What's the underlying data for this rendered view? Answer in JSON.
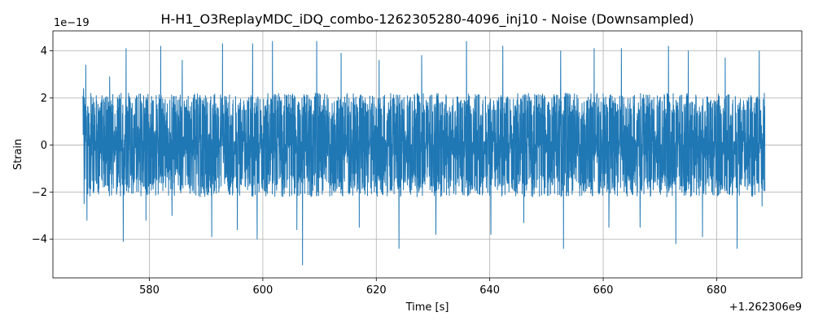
{
  "chart_data": {
    "type": "line",
    "title": "H-H1_O3ReplayMDC_iDQ_combo-1262305280-4096_inj10 - Noise (Downsampled)",
    "xlabel": "Time [s]",
    "ylabel": "Strain",
    "x_offset_label": "+1.262306e9",
    "y_scale_label": "1e−19",
    "xlim": [
      563,
      695
    ],
    "ylim": [
      -5.65,
      4.85
    ],
    "x_ticks": [
      580,
      600,
      620,
      640,
      660,
      680
    ],
    "x_tick_labels": [
      "580",
      "600",
      "620",
      "640",
      "660",
      "680"
    ],
    "y_ticks": [
      -4,
      -2,
      0,
      2,
      4
    ],
    "y_tick_labels": [
      "−4",
      "−2",
      "0",
      "2",
      "4"
    ],
    "grid": true,
    "series": [
      {
        "color": "#1f77b4",
        "x_range": [
          568.3,
          688.5
        ],
        "typical_band": [
          -1.9,
          2.1
        ],
        "extremes": [
          {
            "x": 568.4,
            "y": 2.4
          },
          {
            "x": 568.5,
            "y": -2.5
          },
          {
            "x": 568.8,
            "y": 3.4
          },
          {
            "x": 569.0,
            "y": -3.2
          },
          {
            "x": 573.0,
            "y": 2.9
          },
          {
            "x": 575.4,
            "y": -4.1
          },
          {
            "x": 575.9,
            "y": 4.1
          },
          {
            "x": 579.4,
            "y": -3.2
          },
          {
            "x": 582.0,
            "y": 4.2
          },
          {
            "x": 584.0,
            "y": -3.0
          },
          {
            "x": 585.8,
            "y": 3.6
          },
          {
            "x": 591.0,
            "y": -3.9
          },
          {
            "x": 592.9,
            "y": 4.3
          },
          {
            "x": 595.5,
            "y": -3.6
          },
          {
            "x": 598.2,
            "y": 4.3
          },
          {
            "x": 599.0,
            "y": -4.0
          },
          {
            "x": 601.7,
            "y": 4.4
          },
          {
            "x": 606.0,
            "y": -3.6
          },
          {
            "x": 607.0,
            "y": -5.1
          },
          {
            "x": 609.5,
            "y": 4.4
          },
          {
            "x": 613.8,
            "y": 3.9
          },
          {
            "x": 617.0,
            "y": -3.5
          },
          {
            "x": 620.5,
            "y": 3.6
          },
          {
            "x": 624.0,
            "y": -4.4
          },
          {
            "x": 628.0,
            "y": 3.8
          },
          {
            "x": 630.5,
            "y": -3.8
          },
          {
            "x": 635.9,
            "y": 4.4
          },
          {
            "x": 640.2,
            "y": -3.8
          },
          {
            "x": 642.3,
            "y": 4.2
          },
          {
            "x": 646.0,
            "y": -3.3
          },
          {
            "x": 652.5,
            "y": 4.0
          },
          {
            "x": 653.0,
            "y": -4.4
          },
          {
            "x": 658.4,
            "y": 4.1
          },
          {
            "x": 661.0,
            "y": -3.5
          },
          {
            "x": 663.2,
            "y": 4.1
          },
          {
            "x": 666.5,
            "y": -3.5
          },
          {
            "x": 671.5,
            "y": 4.2
          },
          {
            "x": 672.8,
            "y": -4.2
          },
          {
            "x": 675.0,
            "y": 4.0
          },
          {
            "x": 677.5,
            "y": -3.9
          },
          {
            "x": 681.5,
            "y": 3.7
          },
          {
            "x": 683.6,
            "y": -4.4
          },
          {
            "x": 687.5,
            "y": 4.0
          },
          {
            "x": 688.0,
            "y": -2.6
          },
          {
            "x": 688.4,
            "y": 2.2
          }
        ]
      }
    ]
  }
}
